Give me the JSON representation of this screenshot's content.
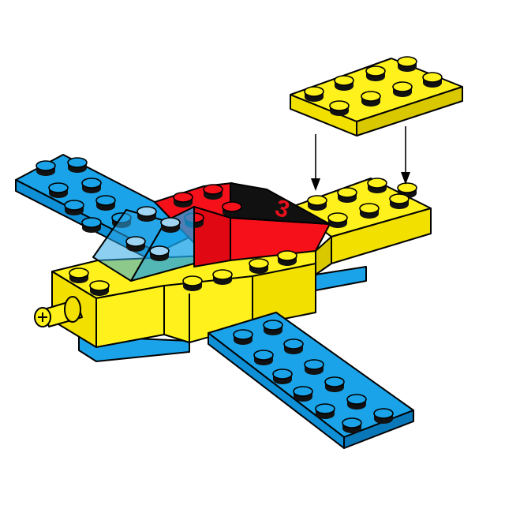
{
  "colors": {
    "yellow_top": "#FFF21C",
    "yellow_side": "#F2E000",
    "yellow_dark": "#D9C800",
    "blue_top": "#1AA3E8",
    "blue_side": "#0E8FD6",
    "blue_dark": "#0A78B8",
    "red_top": "#F5101A",
    "red_side": "#E00812",
    "red_dark": "#B5000A",
    "glass": "#2FA8E6",
    "black": "#111111",
    "decal_red": "#E8101A"
  },
  "parts": [
    {
      "name": "left-wing-plate",
      "color": "blue",
      "studs": "2x8"
    },
    {
      "name": "right-wing-plate",
      "color": "blue",
      "studs": "2x8"
    },
    {
      "name": "fuselage-rear-brick",
      "color": "yellow",
      "studs": "2x4"
    },
    {
      "name": "fuselage-front-brick",
      "color": "yellow",
      "studs": "2x2"
    },
    {
      "name": "cockpit-windscreen",
      "color": "transparent blue",
      "studs": "2x2"
    },
    {
      "name": "red-slope-bricks",
      "color": "red",
      "studs": "2x3"
    },
    {
      "name": "tail-plate-new",
      "color": "yellow",
      "studs": "2x4"
    }
  ],
  "decal": {
    "text": "3"
  },
  "instruction": {
    "arrows": 2
  }
}
